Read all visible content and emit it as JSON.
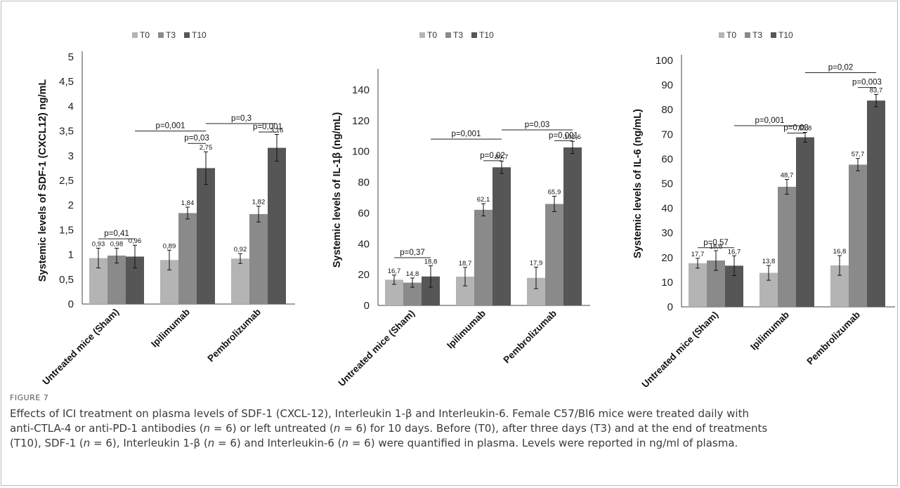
{
  "chart_data": [
    {
      "type": "bar",
      "categories": [
        "Untreated mice (Sham)",
        "Ipilimumab",
        "Pembrolizumab"
      ],
      "series": [
        {
          "name": "T0",
          "color": "#b4b4b4",
          "values": [
            0.93,
            0.89,
            0.92
          ],
          "errors": [
            0.2,
            0.2,
            0.1
          ]
        },
        {
          "name": "T3",
          "color": "#8a8a8a",
          "values": [
            0.98,
            1.84,
            1.82
          ],
          "errors": [
            0.15,
            0.12,
            0.16
          ]
        },
        {
          "name": "T10",
          "color": "#565656",
          "values": [
            0.96,
            2.75,
            3.16
          ],
          "errors": [
            0.23,
            0.33,
            0.27
          ]
        }
      ],
      "data_labels": [
        [
          "0,93",
          "0,98",
          "0,96"
        ],
        [
          "0,89",
          "1,84",
          "2,75"
        ],
        [
          "0,92",
          "1,82",
          "3,16"
        ]
      ],
      "ylabel": "Systemic levels of SDF-1 (CXCL12) ng/mL",
      "ylim": [
        0,
        5
      ],
      "yticks": [
        0,
        0.5,
        1,
        1.5,
        2,
        2.5,
        3,
        3.5,
        4,
        4.5,
        5
      ],
      "ytick_labels": [
        "0",
        "0,5",
        "1",
        "1,5",
        "2",
        "2,5",
        "3",
        "3,5",
        "4",
        "4,5",
        "5"
      ],
      "annotations": [
        {
          "text": "p=0,41",
          "from": [
            0,
            0
          ],
          "to": [
            0,
            2
          ],
          "y": 1.32
        },
        {
          "text": "p=0,001",
          "from": [
            0,
            2
          ],
          "to": [
            1,
            2
          ],
          "y": 3.5
        },
        {
          "text": "p=0,03",
          "from": [
            1,
            1
          ],
          "to": [
            1,
            2
          ],
          "y": 3.25
        },
        {
          "text": "p=0,3",
          "from": [
            1,
            2
          ],
          "to": [
            2,
            2
          ],
          "y": 3.65
        },
        {
          "text": "p=0,001",
          "from": [
            2,
            1
          ],
          "to": [
            2,
            2
          ],
          "y": 3.48
        }
      ]
    },
    {
      "type": "bar",
      "categories": [
        "Untreated mice (Sham)",
        "Ipilimumab",
        "Pembrolizumab"
      ],
      "series": [
        {
          "name": "T0",
          "color": "#b4b4b4",
          "values": [
            16.7,
            18.7,
            17.9
          ],
          "errors": [
            3,
            6,
            7
          ]
        },
        {
          "name": "T3",
          "color": "#8a8a8a",
          "values": [
            14.8,
            62.1,
            65.9
          ],
          "errors": [
            3,
            4,
            5
          ]
        },
        {
          "name": "T10",
          "color": "#565656",
          "values": [
            18.8,
            89.7,
            102.6
          ],
          "errors": [
            7,
            4,
            4
          ]
        }
      ],
      "data_labels": [
        [
          "16,7",
          "14,8",
          "18,8"
        ],
        [
          "18,7",
          "62,1",
          "89,7"
        ],
        [
          "17,9",
          "65,9",
          "102,6"
        ]
      ],
      "ylabel": "Systemic levels of IL-1β (ng/mL)",
      "ylim": [
        0,
        150
      ],
      "yticks": [
        0,
        20,
        40,
        60,
        80,
        100,
        120,
        140
      ],
      "ytick_labels": [
        "0",
        "20",
        "40",
        "60",
        "80",
        "100",
        "120",
        "140"
      ],
      "annotations": [
        {
          "text": "p=0,37",
          "from": [
            0,
            0
          ],
          "to": [
            0,
            2
          ],
          "y": 31
        },
        {
          "text": "p=0,001",
          "from": [
            0,
            2
          ],
          "to": [
            1,
            2
          ],
          "y": 108
        },
        {
          "text": "p=0,02",
          "from": [
            1,
            1
          ],
          "to": [
            1,
            2
          ],
          "y": 94
        },
        {
          "text": "p=0,03",
          "from": [
            1,
            2
          ],
          "to": [
            2,
            2
          ],
          "y": 114
        },
        {
          "text": "p=0,001",
          "from": [
            2,
            1
          ],
          "to": [
            2,
            2
          ],
          "y": 107
        }
      ]
    },
    {
      "type": "bar",
      "categories": [
        "Untreated mice (Sham)",
        "Ipilimumab",
        "Pembrolizumab"
      ],
      "series": [
        {
          "name": "T0",
          "color": "#b4b4b4",
          "values": [
            17.7,
            13.8,
            16.8
          ],
          "errors": [
            2,
            3,
            4
          ]
        },
        {
          "name": "T3",
          "color": "#8a8a8a",
          "values": [
            18.8,
            48.7,
            57.7
          ],
          "errors": [
            4,
            3,
            2.5
          ]
        },
        {
          "name": "T10",
          "color": "#565656",
          "values": [
            16.7,
            68.8,
            83.7
          ],
          "errors": [
            4,
            2,
            2.5
          ]
        }
      ],
      "data_labels": [
        [
          "17,7",
          "18,8",
          "16,7"
        ],
        [
          "13,8",
          "48,7",
          "68,8"
        ],
        [
          "16,8",
          "57,7",
          "83,7"
        ]
      ],
      "ylabel": "Systemic levels of IL-6 (ng/mL)",
      "ylim": [
        0,
        100
      ],
      "yticks": [
        0,
        10,
        20,
        30,
        40,
        50,
        60,
        70,
        80,
        90,
        100
      ],
      "ytick_labels": [
        "0",
        "10",
        "20",
        "30",
        "40",
        "50",
        "60",
        "70",
        "80",
        "90",
        "100"
      ],
      "annotations": [
        {
          "text": "p=0,57",
          "from": [
            0,
            0
          ],
          "to": [
            0,
            2
          ],
          "y": 24
        },
        {
          "text": "p=0,001",
          "from": [
            0,
            2
          ],
          "to": [
            1,
            2
          ],
          "y": 73.5
        },
        {
          "text": "p=0,03",
          "from": [
            1,
            1
          ],
          "to": [
            1,
            2
          ],
          "y": 70.5
        },
        {
          "text": "p=0,02",
          "from": [
            1,
            2
          ],
          "to": [
            2,
            2
          ],
          "y": 95
        },
        {
          "text": "p=0,003",
          "from": [
            2,
            1
          ],
          "to": [
            2,
            2
          ],
          "y": 89
        }
      ]
    }
  ],
  "caption": {
    "label": "FIGURE 7",
    "line1": "Effects of ICI treatment on plasma levels of SDF-1 (CXCL-12), Interleukin 1-β and Interleukin-6. Female C57/Bl6 mice were treated daily with",
    "line2_a": "anti-CTLA-4 or anti-PD-1 antibodies (",
    "line2_b": "n",
    "line2_c": " = 6) or left untreated (",
    "line2_d": "n",
    "line2_e": " = 6) for 10 days. Before (T0), after three days (T3) and at the end of treatments",
    "line3_a": "(T10), SDF-1 (",
    "line3_b": "n",
    "line3_c": " = 6), Interleukin 1-β (",
    "line3_d": "n",
    "line3_e": " = 6) and Interleukin-6 (",
    "line3_f": "n",
    "line3_g": " = 6) were quantified in plasma. Levels were reported in ng/ml of plasma."
  }
}
